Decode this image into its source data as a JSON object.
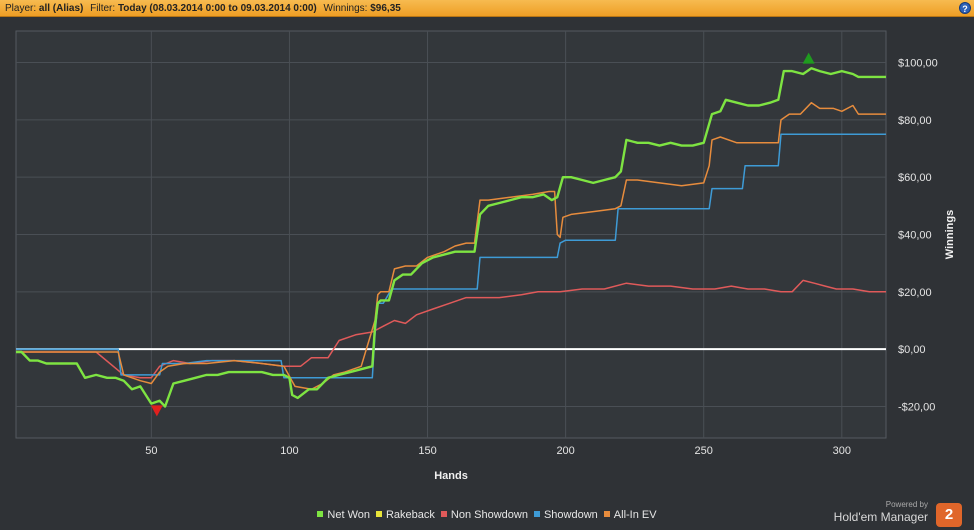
{
  "header": {
    "player_label": "Player:",
    "player_value": "all (Alias)",
    "filter_label": "Filter:",
    "filter_value": "Today (08.03.2014 0:00 to 09.03.2014 0:00)",
    "winnings_label": "Winnings:",
    "winnings_value": "$96,35",
    "help_symbol": "?"
  },
  "brand": {
    "powered_by": "Powered by",
    "name": "Hold'em Manager",
    "badge": "2"
  },
  "chart_data": {
    "type": "line",
    "xlabel": "Hands",
    "ylabel": "Winnings",
    "xlim": [
      1,
      316
    ],
    "ylim": [
      -31,
      111
    ],
    "x_ticks": [
      50,
      100,
      150,
      200,
      250,
      300
    ],
    "y_ticks": [
      {
        "value": 100,
        "label": "$100,00"
      },
      {
        "value": 80,
        "label": "$80,00"
      },
      {
        "value": 60,
        "label": "$60,00"
      },
      {
        "value": 40,
        "label": "$40,00"
      },
      {
        "value": 20,
        "label": "$20,00"
      },
      {
        "value": 0,
        "label": "$0,00"
      },
      {
        "value": -20,
        "label": "-$20,00"
      }
    ],
    "grid": true,
    "legend_position": "bottom",
    "zero_line_color": "#ffffff",
    "markers": [
      {
        "type": "max",
        "x": 288,
        "y": 101,
        "color": "#1f9b1f"
      },
      {
        "type": "min",
        "x": 52,
        "y": -21,
        "color": "#e0201e"
      }
    ],
    "series": [
      {
        "name": "Net Won",
        "color": "#7ee442",
        "x": [
          1,
          3,
          6,
          9,
          12,
          16,
          20,
          23,
          26,
          30,
          34,
          37,
          40,
          43,
          46,
          50,
          53,
          55,
          58,
          62,
          66,
          70,
          74,
          78,
          82,
          86,
          90,
          94,
          98,
          100,
          101,
          103,
          107,
          110,
          114,
          118,
          122,
          126,
          130,
          131,
          132,
          133,
          136,
          138,
          141,
          144,
          148,
          152,
          156,
          160,
          164,
          167,
          169,
          172,
          176,
          180,
          184,
          188,
          192,
          195,
          197,
          199,
          202,
          206,
          210,
          214,
          218,
          220,
          222,
          226,
          230,
          234,
          238,
          242,
          246,
          250,
          253,
          256,
          258,
          262,
          266,
          270,
          274,
          277,
          279,
          282,
          286,
          289,
          292,
          296,
          300,
          304,
          306,
          309,
          312,
          316
        ],
        "y": [
          -1,
          -1,
          -4,
          -4,
          -5,
          -5,
          -5,
          -5,
          -10,
          -9,
          -10,
          -10,
          -11,
          -14,
          -13,
          -19,
          -18,
          -20,
          -12,
          -11,
          -10,
          -9,
          -9,
          -8,
          -8,
          -8,
          -8,
          -9,
          -9,
          -10,
          -16,
          -17,
          -14,
          -14,
          -10,
          -9,
          -8,
          -7,
          -6,
          8,
          16,
          17,
          17,
          24,
          26,
          26,
          30,
          32,
          33,
          34,
          34,
          34,
          47,
          50,
          51,
          52,
          53,
          53,
          54,
          52,
          53,
          60,
          60,
          59,
          58,
          59,
          60,
          62,
          73,
          72,
          72,
          71,
          72,
          71,
          71,
          72,
          82,
          83,
          87,
          86,
          85,
          85,
          86,
          87,
          97,
          97,
          96,
          98,
          97,
          96,
          97,
          96,
          95,
          95,
          95,
          95
        ]
      },
      {
        "name": "Rakeback",
        "color": "#e8e43a",
        "x": [],
        "y": []
      },
      {
        "name": "Non Showdown",
        "color": "#e05a5a",
        "x": [
          1,
          6,
          12,
          20,
          30,
          40,
          46,
          50,
          53,
          58,
          64,
          72,
          80,
          90,
          98,
          104,
          108,
          114,
          118,
          124,
          130,
          134,
          138,
          142,
          146,
          152,
          158,
          164,
          170,
          176,
          184,
          190,
          198,
          206,
          214,
          222,
          230,
          238,
          246,
          254,
          260,
          266,
          272,
          278,
          282,
          286,
          290,
          294,
          298,
          304,
          310,
          316
        ],
        "y": [
          -1,
          -1,
          -1,
          -1,
          -1,
          -9,
          -10,
          -10,
          -6,
          -4,
          -5,
          -4,
          -4,
          -5,
          -6,
          -6,
          -3,
          -3,
          3,
          5,
          6,
          8,
          10,
          9,
          12,
          14,
          16,
          18,
          18,
          18,
          19,
          20,
          20,
          21,
          21,
          23,
          22,
          22,
          21,
          21,
          22,
          21,
          21,
          20,
          20,
          24,
          23,
          22,
          21,
          21,
          20,
          20
        ]
      },
      {
        "name": "Showdown",
        "color": "#3e9bd6",
        "x": [
          1,
          10,
          20,
          30,
          38,
          39,
          40,
          42,
          48,
          53,
          54,
          56,
          62,
          70,
          80,
          90,
          97,
          98,
          102,
          108,
          120,
          130,
          131,
          132,
          134,
          137,
          140,
          150,
          160,
          168,
          169,
          172,
          180,
          190,
          196,
          197,
          198,
          200,
          210,
          218,
          219,
          222,
          232,
          240,
          250,
          252,
          253,
          256,
          262,
          264,
          265,
          268,
          276,
          277,
          278,
          282,
          292,
          302,
          312,
          316
        ],
        "y": [
          0,
          0,
          0,
          0,
          0,
          -9,
          -9,
          -9,
          -9,
          -9,
          -5,
          -5,
          -5,
          -4,
          -4,
          -4,
          -4,
          -10,
          -10,
          -10,
          -10,
          -10,
          5,
          16,
          16,
          21,
          21,
          21,
          21,
          21,
          32,
          32,
          32,
          32,
          32,
          32,
          37,
          38,
          38,
          38,
          49,
          49,
          49,
          49,
          49,
          49,
          56,
          56,
          56,
          56,
          64,
          64,
          64,
          64,
          75,
          75,
          75,
          75,
          75,
          75
        ]
      },
      {
        "name": "All-In EV",
        "color": "#e78c3d",
        "x": [
          1,
          10,
          20,
          30,
          38,
          40,
          46,
          50,
          53,
          56,
          62,
          70,
          80,
          90,
          98,
          102,
          108,
          112,
          116,
          120,
          126,
          131,
          132,
          133,
          136,
          138,
          142,
          146,
          150,
          156,
          160,
          164,
          167,
          169,
          172,
          180,
          188,
          194,
          196,
          197,
          198,
          199,
          202,
          210,
          218,
          220,
          222,
          226,
          234,
          242,
          250,
          252,
          253,
          256,
          262,
          270,
          277,
          278,
          281,
          285,
          289,
          292,
          297,
          300,
          304,
          306,
          312,
          316
        ],
        "y": [
          -1,
          -1,
          -1,
          -1,
          -1,
          -9,
          -11,
          -12,
          -8,
          -6,
          -5,
          -5,
          -4,
          -5,
          -6,
          -13,
          -14,
          -12,
          -9,
          -8,
          -6,
          10,
          19,
          20,
          20,
          28,
          29,
          29,
          32,
          34,
          36,
          37,
          37,
          52,
          52,
          53,
          54,
          55,
          55,
          40,
          39,
          46,
          47,
          48,
          49,
          50,
          59,
          59,
          58,
          57,
          58,
          64,
          73,
          74,
          72,
          72,
          72,
          80,
          82,
          82,
          86,
          84,
          84,
          83,
          85,
          82,
          82,
          82
        ]
      }
    ]
  }
}
